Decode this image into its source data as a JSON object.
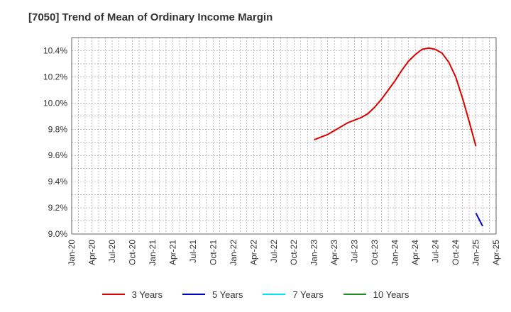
{
  "chart_data": {
    "type": "line",
    "title": "[7050]  Trend of Mean of Ordinary Income Margin",
    "xlabel": "",
    "ylabel": "",
    "x_tick_labels": [
      "Jan-20",
      "Apr-20",
      "Jul-20",
      "Oct-20",
      "Jan-21",
      "Apr-21",
      "Jul-21",
      "Oct-21",
      "Jan-22",
      "Apr-22",
      "Jul-22",
      "Oct-22",
      "Jan-23",
      "Apr-23",
      "Jul-23",
      "Oct-23",
      "Jan-24",
      "Apr-24",
      "Jul-24",
      "Oct-24",
      "Jan-25",
      "Apr-25"
    ],
    "y_tick_labels": [
      "9.0%",
      "9.2%",
      "9.4%",
      "9.6%",
      "9.8%",
      "10.0%",
      "10.2%",
      "10.4%"
    ],
    "ylim": [
      9.0,
      10.5
    ],
    "grid": true,
    "legend_position": "bottom",
    "series": [
      {
        "name": "3 Years",
        "color": "#dd0000",
        "x": [
          "Jan-23",
          "Feb-23",
          "Mar-23",
          "Apr-23",
          "May-23",
          "Jun-23",
          "Jul-23",
          "Aug-23",
          "Sep-23",
          "Oct-23",
          "Nov-23",
          "Dec-23",
          "Jan-24",
          "Feb-24",
          "Mar-24",
          "Apr-24",
          "May-24",
          "Jun-24",
          "Jul-24",
          "Aug-24",
          "Sep-24",
          "Oct-24",
          "Nov-24",
          "Dec-24",
          "Jan-25"
        ],
        "values": [
          9.72,
          9.74,
          9.76,
          9.79,
          9.82,
          9.85,
          9.87,
          9.89,
          9.92,
          9.97,
          10.03,
          10.1,
          10.17,
          10.25,
          10.32,
          10.37,
          10.41,
          10.42,
          10.41,
          10.38,
          10.31,
          10.2,
          10.04,
          9.86,
          9.67
        ]
      },
      {
        "name": "5 Years",
        "color": "#0000cc",
        "x": [
          "Jan-25",
          "Feb-25"
        ],
        "values": [
          9.16,
          9.06
        ]
      },
      {
        "name": "7 Years",
        "color": "#00e5ee",
        "x": [],
        "values": []
      },
      {
        "name": "10 Years",
        "color": "#228b22",
        "x": [],
        "values": []
      }
    ]
  }
}
